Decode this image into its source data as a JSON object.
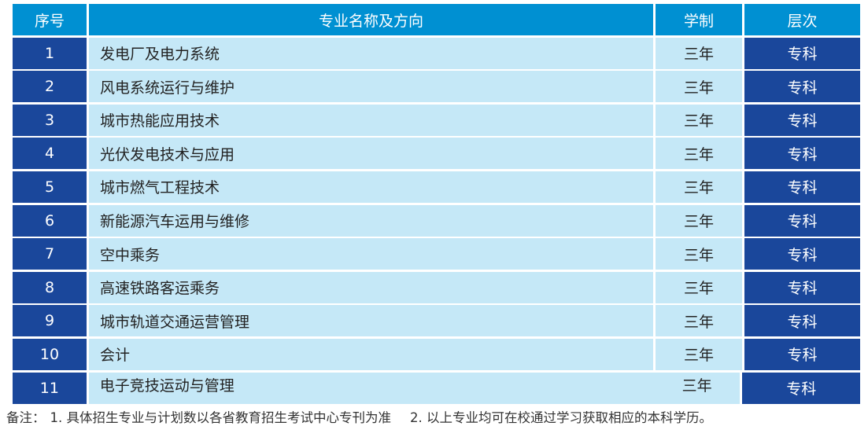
{
  "header": {
    "no": "序号",
    "major": "专业名称及方向",
    "duration": "学制",
    "level": "层次"
  },
  "rows": [
    {
      "no": "1",
      "major": "发电厂及电力系统",
      "duration": "三年",
      "level": "专科"
    },
    {
      "no": "2",
      "major": "风电系统运行与维护",
      "duration": "三年",
      "level": "专科"
    },
    {
      "no": "3",
      "major": "城市热能应用技术",
      "duration": "三年",
      "level": "专科"
    },
    {
      "no": "4",
      "major": "光伏发电技术与应用",
      "duration": "三年",
      "level": "专科"
    },
    {
      "no": "5",
      "major": "城市燃气工程技术",
      "duration": "三年",
      "level": "专科"
    },
    {
      "no": "6",
      "major": "新能源汽车运用与维修",
      "duration": "三年",
      "level": "专科"
    },
    {
      "no": "7",
      "major": "空中乘务",
      "duration": "三年",
      "level": "专科"
    },
    {
      "no": "8",
      "major": "高速铁路客运乘务",
      "duration": "三年",
      "level": "专科"
    },
    {
      "no": "9",
      "major": "城市轨道交通运营管理",
      "duration": "三年",
      "level": "专科"
    },
    {
      "no": "10",
      "major": "会计",
      "duration": "三年",
      "level": "专科"
    },
    {
      "no": "11",
      "major": "电子竞技运动与管理",
      "duration": "三年",
      "level": "专科"
    }
  ],
  "note": {
    "prefix": "备注：",
    "item1": "1.  具体招生专业与计划数以各省教育招生考试中心专刊为准",
    "item2": "2.  以上专业均可在校通过学习获取相应的本科学历。"
  },
  "colors": {
    "header": "#0090d2",
    "dark": "#1a479b",
    "light": "#c5e8f7"
  }
}
